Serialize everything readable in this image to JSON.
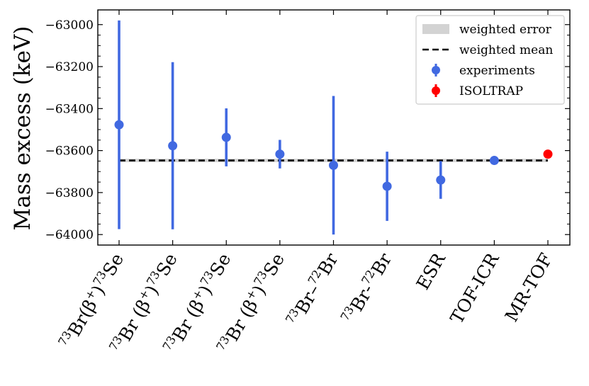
{
  "chart_data": {
    "type": "scatter",
    "title": "",
    "xlabel": "",
    "ylabel": "Mass excess (keV)",
    "ylim": [
      -64050,
      -62930
    ],
    "yticks": [
      -63000,
      -63200,
      -63400,
      -63600,
      -63800,
      -64000
    ],
    "ytick_labels": [
      "−63000",
      "−63200",
      "−63400",
      "−63600",
      "−63800",
      "−64000"
    ],
    "grid": false,
    "legend_position": "top-right",
    "categories": [
      {
        "pre": "73",
        "main": "Br(β",
        "sup2": "+",
        "post": ")",
        "sup3": "73",
        "tail": "Se"
      },
      {
        "pre": "73",
        "main": "Br (β",
        "sup2": "+",
        "post": ")",
        "sup3": "73",
        "tail": "Se"
      },
      {
        "pre": "73",
        "main": "Br (β",
        "sup2": "+",
        "post": ")",
        "sup3": "73",
        "tail": "Se"
      },
      {
        "pre": "73",
        "main": "Br (β",
        "sup2": "+",
        "post": ")",
        "sup3": "73",
        "tail": "Se"
      },
      {
        "pre": "73",
        "main": "Br–",
        "sup2": "72",
        "post": "Br",
        "sup3": "",
        "tail": ""
      },
      {
        "pre": "73",
        "main": "Br-",
        "sup2": "72",
        "post": "Br",
        "sup3": "",
        "tail": ""
      },
      {
        "pre": "",
        "main": "ESR",
        "sup2": "",
        "post": "",
        "sup3": "",
        "tail": ""
      },
      {
        "pre": "",
        "main": "TOF-ICR",
        "sup2": "",
        "post": "",
        "sup3": "",
        "tail": ""
      },
      {
        "pre": "",
        "main": "MR-TOF",
        "sup2": "",
        "post": "",
        "sup3": "",
        "tail": ""
      }
    ],
    "series": [
      {
        "name": "experiments",
        "color": "#4169e1",
        "points": [
          {
            "x": 0,
            "y": -63477,
            "err": 497
          },
          {
            "x": 1,
            "y": -63577,
            "err": 398
          },
          {
            "x": 2,
            "y": -63537,
            "err": 138
          },
          {
            "x": 3,
            "y": -63617,
            "err": 68
          },
          {
            "x": 4,
            "y": -63670,
            "err": 330
          },
          {
            "x": 5,
            "y": -63770,
            "err": 165
          },
          {
            "x": 6,
            "y": -63740,
            "err": 90
          },
          {
            "x": 7,
            "y": -63647,
            "err": 5
          }
        ]
      },
      {
        "name": "ISOLTRAP",
        "color": "#ff0000",
        "points": [
          {
            "x": 8,
            "y": -63617,
            "err": 14
          }
        ]
      }
    ],
    "weighted_mean": -63647,
    "weighted_error": 8,
    "legend": [
      {
        "label": "weighted error",
        "kind": "patch",
        "color": "#d3d3d3"
      },
      {
        "label": "weighted mean",
        "kind": "dashed",
        "color": "#000000"
      },
      {
        "label": "experiments",
        "kind": "marker",
        "color": "#4169e1"
      },
      {
        "label": "ISOLTRAP",
        "kind": "marker",
        "color": "#ff0000"
      }
    ]
  }
}
